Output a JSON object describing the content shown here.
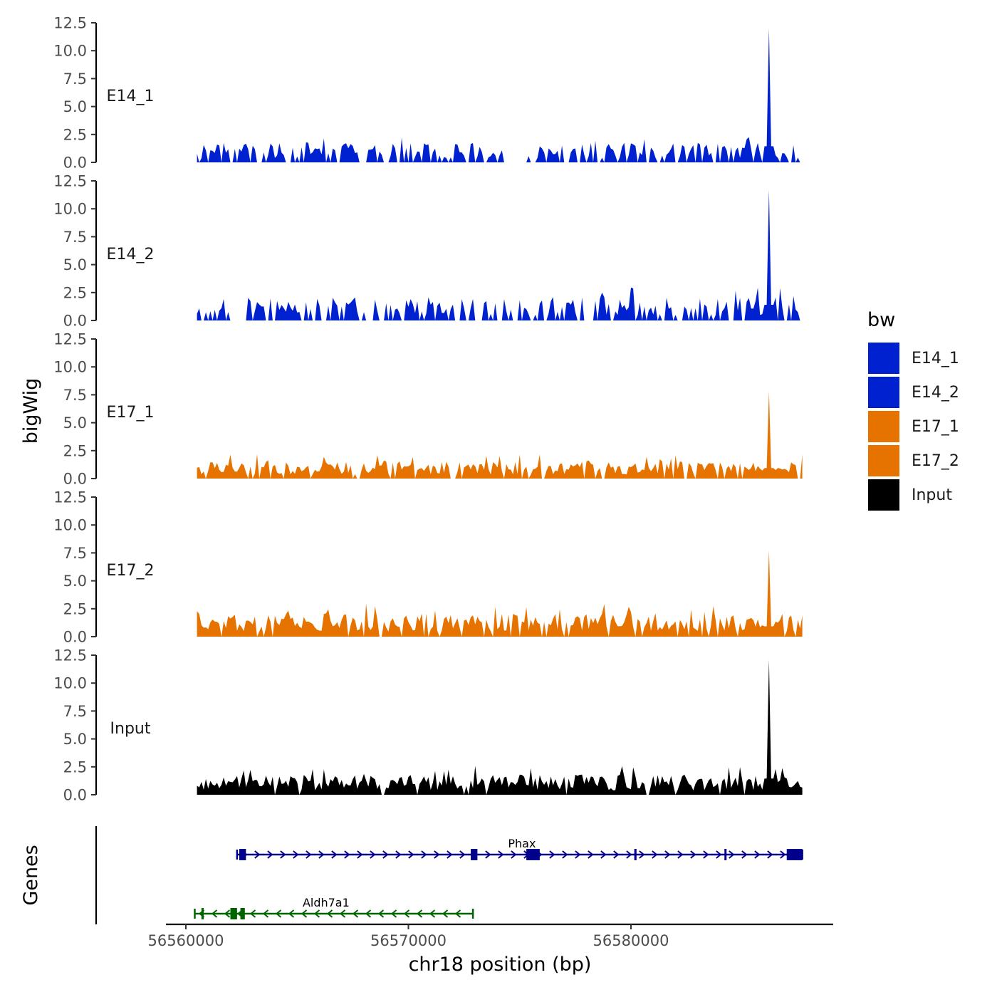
{
  "chart_data": {
    "type": "area",
    "title": "",
    "ylabel": "bigWig",
    "xlabel": "chr18 position (bp)",
    "genes_label": "Genes",
    "xlim": [
      56559000,
      56588500
    ],
    "data_xrange": [
      56560500,
      56587700
    ],
    "ylim": [
      0,
      12.5
    ],
    "yticks": [
      0,
      2.5,
      5,
      7.5,
      10,
      12.5
    ],
    "ytick_labels": [
      "0.0",
      "2.5",
      "5.0",
      "7.5",
      "10.0",
      "12.5"
    ],
    "xticks": [
      56560000,
      56570000,
      56580000
    ],
    "xtick_labels": [
      "56560000",
      "56570000",
      "56580000"
    ],
    "peak_position": 56586200,
    "series": [
      {
        "name": "E14_1",
        "color": "#0021CF",
        "peak": 12.0,
        "max_bg": 2.5,
        "seed": 11,
        "density": 0.62
      },
      {
        "name": "E14_2",
        "color": "#0021CF",
        "peak": 11.7,
        "max_bg": 3.0,
        "seed": 23,
        "density": 0.6
      },
      {
        "name": "E17_1",
        "color": "#E67300",
        "peak": 7.8,
        "max_bg": 2.2,
        "seed": 37,
        "density": 0.85
      },
      {
        "name": "E17_2",
        "color": "#E67300",
        "peak": 7.7,
        "max_bg": 3.0,
        "seed": 53,
        "density": 0.88
      },
      {
        "name": "Input",
        "color": "#000000",
        "peak": 12.1,
        "max_bg": 2.6,
        "seed": 71,
        "density": 0.97
      }
    ],
    "genes": [
      {
        "name": "Phax",
        "strand": "+",
        "color": "#00008B",
        "start": 56562300,
        "end": 56587700,
        "label_pos": 56575100,
        "exons": [
          [
            56562400,
            56562700
          ],
          [
            56572800,
            56573100
          ],
          [
            56575300,
            56575900
          ],
          [
            56580150,
            56580250
          ],
          [
            56584200,
            56584280
          ],
          [
            56587000,
            56587700
          ]
        ]
      },
      {
        "name": "Aldh7a1",
        "strand": "-",
        "color": "#006400",
        "start": 56560400,
        "end": 56572900,
        "label_pos": 56566300,
        "exons": [
          [
            56560700,
            56560800
          ],
          [
            56562000,
            56562300
          ],
          [
            56562450,
            56562650
          ]
        ]
      }
    ],
    "legend": {
      "title": "bw",
      "entries": [
        {
          "label": "E14_1",
          "color": "#0021CF"
        },
        {
          "label": "E14_2",
          "color": "#0021CF"
        },
        {
          "label": "E17_1",
          "color": "#E67300"
        },
        {
          "label": "E17_2",
          "color": "#E67300"
        },
        {
          "label": "Input",
          "color": "#000000"
        }
      ]
    }
  }
}
